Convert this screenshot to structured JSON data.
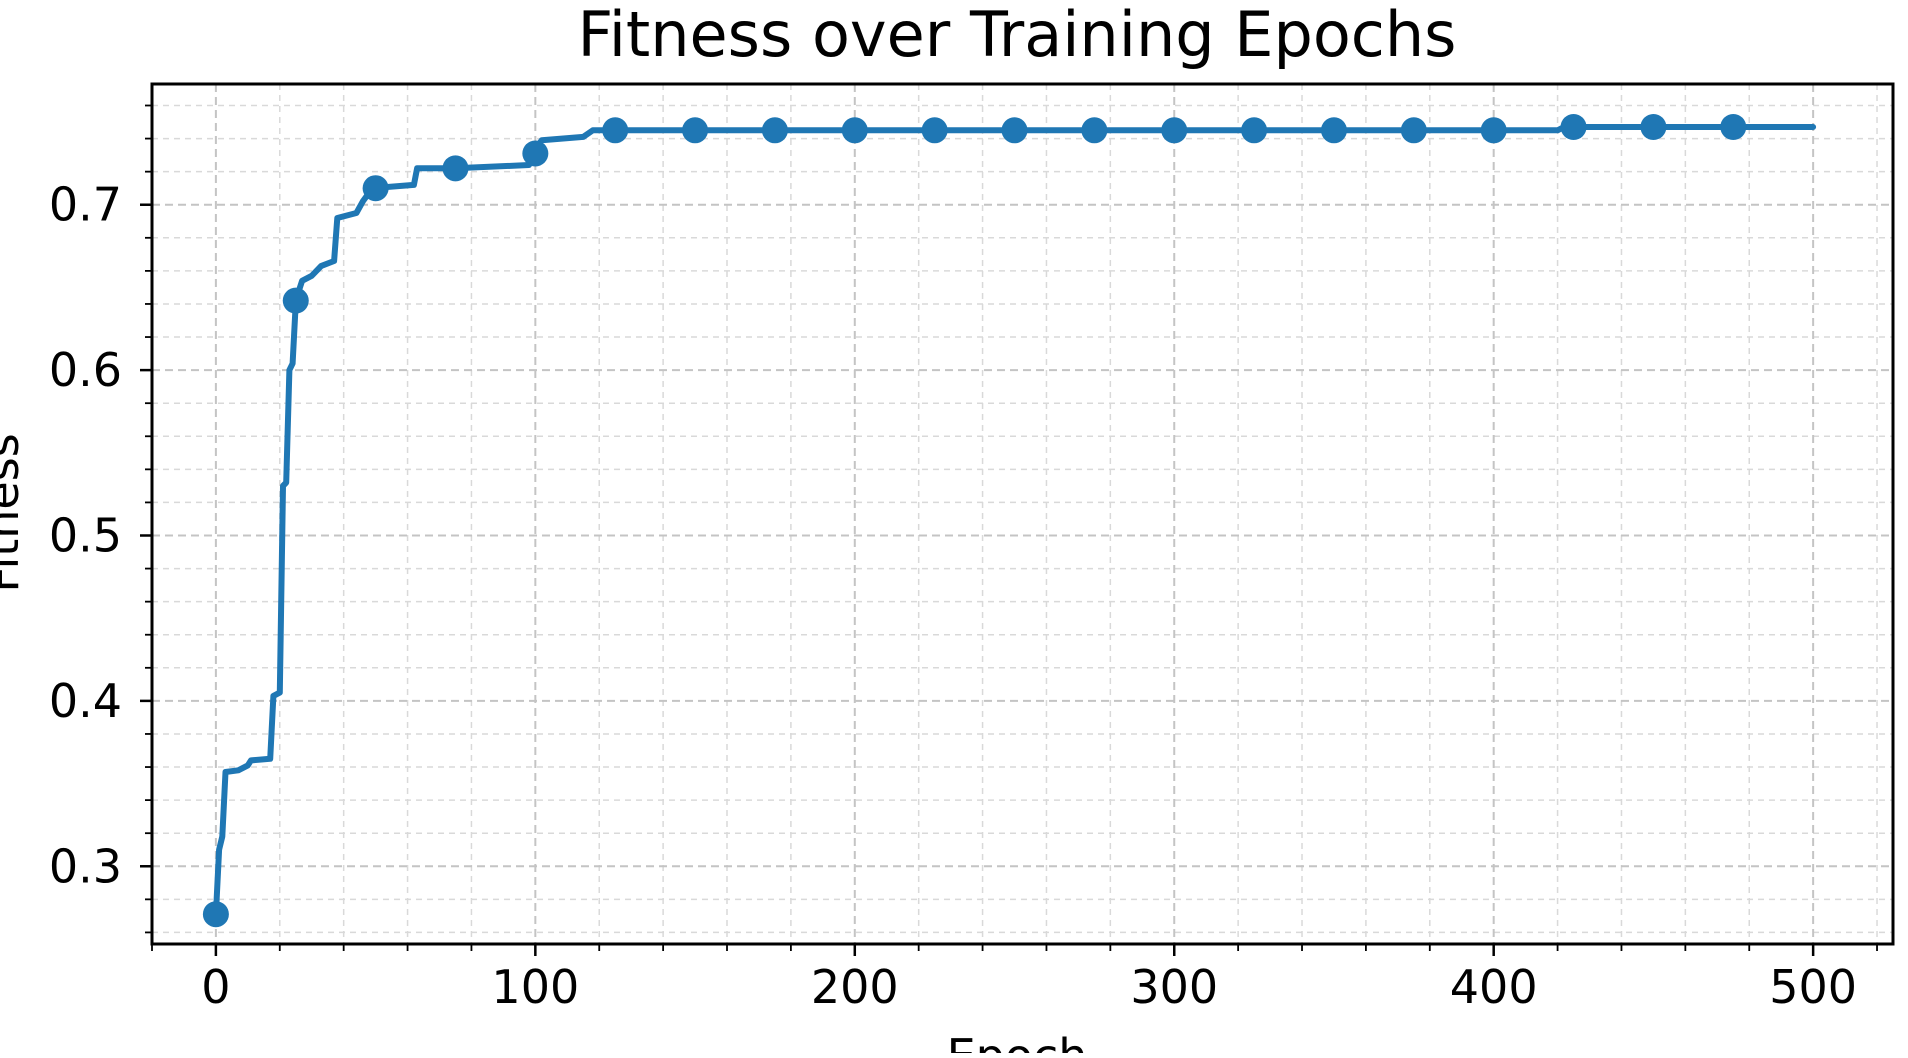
{
  "chart_data": {
    "type": "line",
    "title": "Fitness over Training Epochs",
    "xlabel": "Epoch",
    "ylabel": "Fitness",
    "xlim": [
      -20,
      525
    ],
    "ylim": [
      0.253,
      0.773
    ],
    "x_ticks": [
      0,
      100,
      200,
      300,
      400,
      500
    ],
    "y_ticks": [
      0.3,
      0.4,
      0.5,
      0.6,
      0.7
    ],
    "grid": true,
    "grid_style": "dashed, major and minor",
    "legend": "none",
    "series": [
      {
        "color": "#1f77b4",
        "points": [
          [
            0,
            0.271
          ],
          [
            1,
            0.31
          ],
          [
            2,
            0.318
          ],
          [
            3,
            0.357
          ],
          [
            7,
            0.358
          ],
          [
            10,
            0.361
          ],
          [
            11,
            0.364
          ],
          [
            17,
            0.365
          ],
          [
            18,
            0.403
          ],
          [
            20,
            0.405
          ],
          [
            21,
            0.53
          ],
          [
            22,
            0.532
          ],
          [
            23,
            0.6
          ],
          [
            24,
            0.604
          ],
          [
            25,
            0.641
          ],
          [
            26,
            0.648
          ],
          [
            27,
            0.654
          ],
          [
            30,
            0.657
          ],
          [
            33,
            0.663
          ],
          [
            37,
            0.666
          ],
          [
            38,
            0.692
          ],
          [
            44,
            0.695
          ],
          [
            46,
            0.702
          ],
          [
            49,
            0.71
          ],
          [
            62,
            0.712
          ],
          [
            63,
            0.722
          ],
          [
            75,
            0.722
          ],
          [
            98,
            0.724
          ],
          [
            99,
            0.731
          ],
          [
            102,
            0.739
          ],
          [
            115,
            0.741
          ],
          [
            118,
            0.745
          ],
          [
            420,
            0.745
          ],
          [
            422,
            0.747
          ],
          [
            500,
            0.747
          ]
        ],
        "markers": [
          [
            0,
            0.271
          ],
          [
            25,
            0.642
          ],
          [
            50,
            0.71
          ],
          [
            75,
            0.722
          ],
          [
            100,
            0.731
          ],
          [
            125,
            0.745
          ],
          [
            150,
            0.745
          ],
          [
            175,
            0.745
          ],
          [
            200,
            0.745
          ],
          [
            225,
            0.745
          ],
          [
            250,
            0.745
          ],
          [
            275,
            0.745
          ],
          [
            300,
            0.745
          ],
          [
            325,
            0.745
          ],
          [
            350,
            0.745
          ],
          [
            375,
            0.745
          ],
          [
            400,
            0.745
          ],
          [
            425,
            0.747
          ],
          [
            450,
            0.747
          ],
          [
            475,
            0.747
          ]
        ]
      }
    ]
  }
}
